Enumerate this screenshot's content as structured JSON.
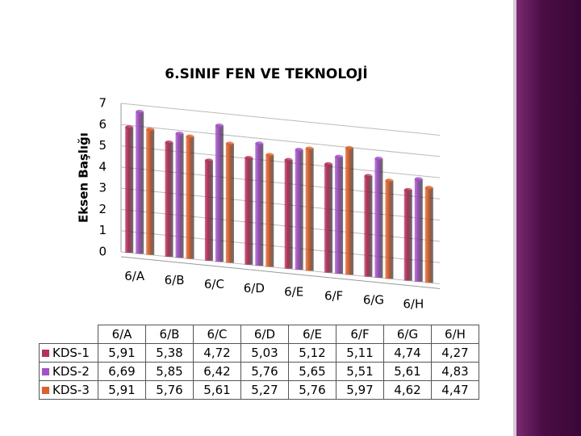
{
  "chart_data": {
    "type": "bar3d",
    "title": "6.SINIF FEN VE TEKNOLOJİ",
    "ylabel": "Eksen Başlığı",
    "categories": [
      "6/A",
      "6/B",
      "6/C",
      "6/D",
      "6/E",
      "6/F",
      "6/G",
      "6/H"
    ],
    "series": [
      {
        "name": "KDS-1",
        "color": "#b8305a",
        "values": [
          5.91,
          5.38,
          4.72,
          5.03,
          5.12,
          5.11,
          4.74,
          4.27
        ],
        "value_labels": [
          "5,91",
          "5,38",
          "4,72",
          "5,03",
          "5,12",
          "5,11",
          "4,74",
          "4,27"
        ]
      },
      {
        "name": "KDS-2",
        "color": "#a450c8",
        "values": [
          6.69,
          5.85,
          6.42,
          5.76,
          5.65,
          5.51,
          5.61,
          4.83
        ],
        "value_labels": [
          "6,69",
          "5,85",
          "6,42",
          "5,76",
          "5,65",
          "5,51",
          "5,61",
          "4,83"
        ]
      },
      {
        "name": "KDS-3",
        "color": "#e0602a",
        "values": [
          5.91,
          5.76,
          5.61,
          5.27,
          5.76,
          5.97,
          4.62,
          4.47
        ],
        "value_labels": [
          "5,91",
          "5,76",
          "5,61",
          "5,27",
          "5,76",
          "5,97",
          "4,62",
          "4,47"
        ]
      }
    ],
    "ylim": [
      0,
      7
    ],
    "yticks": [
      0,
      1,
      2,
      3,
      4,
      5,
      6,
      7
    ],
    "grid": true
  }
}
